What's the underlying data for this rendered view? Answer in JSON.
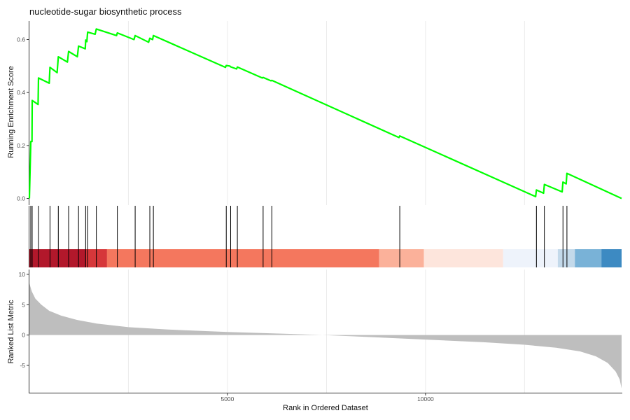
{
  "chart_data": {
    "type": "line",
    "title": "nucleotide-sugar biosynthetic process",
    "xlabel": "Rank in Ordered Dataset",
    "panels": {
      "enrichment": {
        "ylabel": "Running Enrichment Score",
        "ylim": [
          -0.025,
          0.67
        ],
        "yticks": [
          0.0,
          0.2,
          0.4,
          0.6
        ],
        "yticklabels": [
          "0.0",
          "0.2",
          "0.4",
          "0.6"
        ],
        "line_color": "#00ff00",
        "points": [
          [
            0,
            0.0
          ],
          [
            35,
            0.215
          ],
          [
            65,
            0.215
          ],
          [
            70,
            0.37
          ],
          [
            170,
            0.36
          ],
          [
            220,
            0.355
          ],
          [
            230,
            0.455
          ],
          [
            500,
            0.435
          ],
          [
            520,
            0.495
          ],
          [
            700,
            0.475
          ],
          [
            730,
            0.535
          ],
          [
            960,
            0.515
          ],
          [
            990,
            0.555
          ],
          [
            1210,
            0.535
          ],
          [
            1240,
            0.575
          ],
          [
            1410,
            0.565
          ],
          [
            1420,
            0.598
          ],
          [
            1450,
            0.592
          ],
          [
            1470,
            0.628
          ],
          [
            1660,
            0.62
          ],
          [
            1690,
            0.64
          ],
          [
            2200,
            0.615
          ],
          [
            2220,
            0.625
          ],
          [
            2640,
            0.6
          ],
          [
            2670,
            0.615
          ],
          [
            3010,
            0.59
          ],
          [
            3040,
            0.605
          ],
          [
            3110,
            0.6
          ],
          [
            3130,
            0.615
          ],
          [
            4950,
            0.495
          ],
          [
            4970,
            0.502
          ],
          [
            5060,
            0.5
          ],
          [
            5080,
            0.497
          ],
          [
            5230,
            0.489
          ],
          [
            5250,
            0.496
          ],
          [
            5880,
            0.455
          ],
          [
            5900,
            0.457
          ],
          [
            6100,
            0.444
          ],
          [
            6120,
            0.446
          ],
          [
            9330,
            0.23
          ],
          [
            9350,
            0.236
          ],
          [
            12780,
            0.007
          ],
          [
            12800,
            0.032
          ],
          [
            12980,
            0.02
          ],
          [
            13000,
            0.053
          ],
          [
            13450,
            0.025
          ],
          [
            13470,
            0.062
          ],
          [
            13550,
            0.055
          ],
          [
            13570,
            0.095
          ],
          [
            14950,
            0.0
          ]
        ]
      },
      "hits": {
        "ranks": [
          35,
          70,
          230,
          520,
          730,
          990,
          1240,
          1420,
          1470,
          1690,
          2220,
          2670,
          3040,
          3130,
          4970,
          5080,
          5250,
          5900,
          6120,
          9350,
          12800,
          13000,
          13470,
          13570
        ]
      },
      "color_bar": {
        "segments": [
          {
            "start": 0,
            "end": 1430,
            "color": "#b2182b"
          },
          {
            "start": 1430,
            "end": 1960,
            "color": "#d6373a"
          },
          {
            "start": 1960,
            "end": 8830,
            "color": "#f4775e"
          },
          {
            "start": 8830,
            "end": 9960,
            "color": "#fbb19a"
          },
          {
            "start": 9960,
            "end": 11960,
            "color": "#fde5dc"
          },
          {
            "start": 11960,
            "end": 13340,
            "color": "#eef3fb"
          },
          {
            "start": 13340,
            "end": 13770,
            "color": "#c3d9ea"
          },
          {
            "start": 13770,
            "end": 14440,
            "color": "#79b2d7"
          },
          {
            "start": 14440,
            "end": 14950,
            "color": "#3d8ac2"
          }
        ]
      },
      "ranked_metric": {
        "ylabel": "Ranked List Metric",
        "ylim": [
          -9.5,
          10.8
        ],
        "yticks": [
          -5,
          0,
          5,
          10
        ],
        "yticklabels": [
          "-5",
          "0",
          "5",
          "10"
        ],
        "fill_color": "#bebebe",
        "points": [
          [
            0,
            8.5
          ],
          [
            60,
            7.2
          ],
          [
            150,
            6.0
          ],
          [
            300,
            5.0
          ],
          [
            500,
            4.0
          ],
          [
            800,
            3.2
          ],
          [
            1200,
            2.5
          ],
          [
            1700,
            1.9
          ],
          [
            2500,
            1.3
          ],
          [
            3500,
            0.9
          ],
          [
            5000,
            0.5
          ],
          [
            6500,
            0.2
          ],
          [
            7400,
            0.0
          ],
          [
            8500,
            -0.3
          ],
          [
            10000,
            -0.75
          ],
          [
            11500,
            -1.2
          ],
          [
            12500,
            -1.6
          ],
          [
            13300,
            -2.1
          ],
          [
            13900,
            -2.7
          ],
          [
            14300,
            -3.5
          ],
          [
            14600,
            -4.6
          ],
          [
            14800,
            -6.0
          ],
          [
            14900,
            -7.3
          ],
          [
            14950,
            -8.8
          ]
        ]
      }
    },
    "x": {
      "range": [
        0,
        14950
      ],
      "ticks": [
        5000,
        10000
      ],
      "ticklabels": [
        "5000",
        "10000"
      ],
      "gridlines": [
        2500,
        5000,
        7500,
        10000,
        12500
      ]
    },
    "grid": true
  }
}
